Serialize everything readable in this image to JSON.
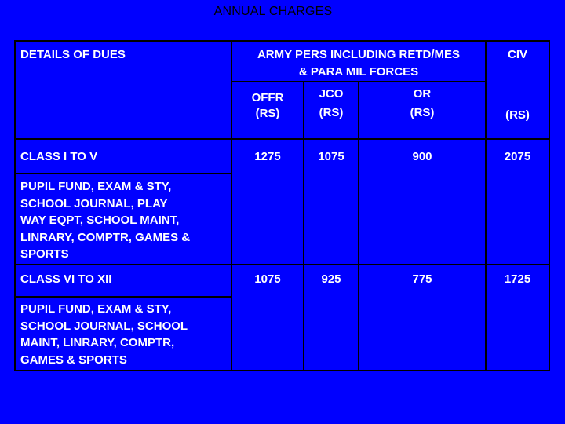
{
  "title": "ANNUAL CHARGES",
  "header": {
    "details": "DETAILS OF DUES",
    "army_line1": "ARMY PERS INCLUDING RETD/MES",
    "army_line2": "& PARA MIL FORCES",
    "civ": "CIV",
    "offr_line1": "OFFR",
    "offr_line2": "(RS)",
    "jco_line1": "JCO",
    "jco_line2": "(RS)",
    "or_line1": "OR",
    "or_line2": "(RS)",
    "civ_unit": "(RS)"
  },
  "rows": [
    {
      "label": "CLASS I TO V",
      "offr": "1275",
      "jco": "1075",
      "or": "900",
      "civ": "2075",
      "desc": [
        "PUPIL FUND, EXAM & STY,",
        "SCHOOL JOURNAL, PLAY",
        "WAY EQPT, SCHOOL MAINT,",
        "LINRARY, COMPTR, GAMES &",
        "SPORTS"
      ]
    },
    {
      "label": "CLASS VI TO XII",
      "offr": "1075",
      "jco": "925",
      "or": "775",
      "civ": "1725",
      "desc": [
        "PUPIL FUND, EXAM & STY,",
        "SCHOOL JOURNAL, SCHOOL",
        "MAINT, LINRARY, COMPTR,",
        "GAMES & SPORTS"
      ]
    }
  ]
}
